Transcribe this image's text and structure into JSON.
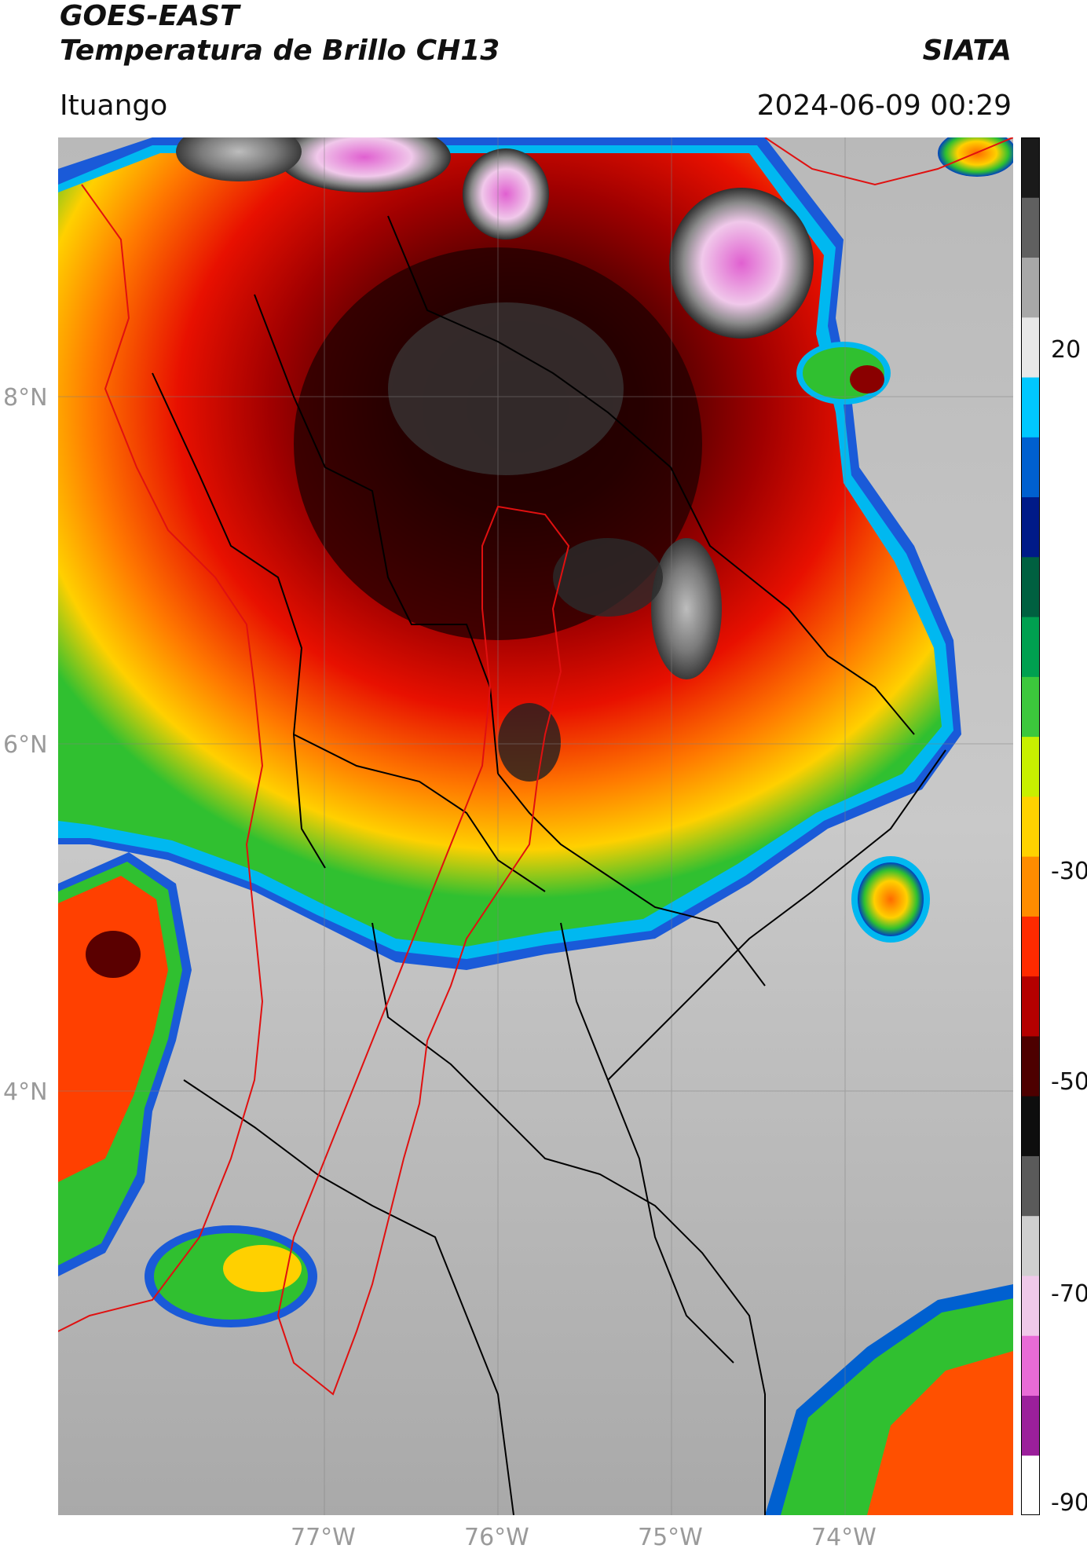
{
  "header": {
    "satellite": "GOES-EAST",
    "product": "Temperatura de Brillo CH13",
    "institution": "SIATA",
    "region": "Ituango",
    "datetime": "2024-06-09 00:29"
  },
  "axes": {
    "lat_labels": [
      "8°N",
      "6°N",
      "4°N"
    ],
    "lon_labels": [
      "77°W",
      "76°W",
      "75°W",
      "74°W"
    ]
  },
  "colorbar": {
    "ticks": [
      "20",
      "-30",
      "-50",
      "-70",
      "-90"
    ],
    "colors": [
      "#ffffff",
      "#9b1f9b",
      "#e86bd6",
      "#efc9e9",
      "#cfcfcf",
      "#5a5a5a",
      "#0e0e0e",
      "#4d0000",
      "#b40000",
      "#ff2a00",
      "#ff8c00",
      "#ffd200",
      "#c8f000",
      "#3cc83c",
      "#00a050",
      "#006040",
      "#001a88",
      "#0060d0",
      "#00c8ff",
      "#e8e8e8",
      "#a8a8a8",
      "#606060",
      "#1a1a1a"
    ]
  },
  "map_colors": {
    "border_black": "#000000",
    "border_red": "#e01010",
    "grid": "#808080"
  }
}
